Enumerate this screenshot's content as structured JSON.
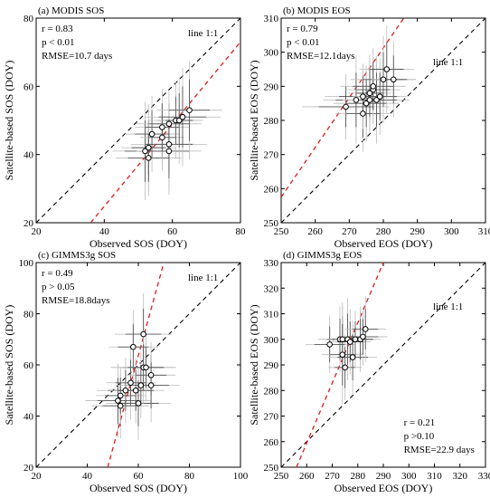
{
  "chart_data": [
    {
      "type": "scatter",
      "title": "(a) MODIS SOS",
      "xlabel": "Observed SOS (DOY)",
      "ylabel": "Satellite-based SOS (DOY)",
      "xlim": [
        20,
        80
      ],
      "ylim": [
        20,
        80
      ],
      "xticks": [
        20,
        40,
        60,
        80
      ],
      "yticks": [
        20,
        40,
        60,
        80
      ],
      "stats": [
        "r = 0.83",
        "p < 0.01",
        "RMSE=10.7 days"
      ],
      "stats_position": "top-left",
      "one_to_one_label": "line 1:1",
      "fit_line": [
        [
          36,
          20
        ],
        [
          80,
          73
        ]
      ],
      "points": [
        {
          "x": 52,
          "y": 41,
          "xerr": 6,
          "yerr": 9
        },
        {
          "x": 53,
          "y": 42,
          "xerr": 5,
          "yerr": 8
        },
        {
          "x": 53,
          "y": 39,
          "xerr": 6,
          "yerr": 7
        },
        {
          "x": 54,
          "y": 46,
          "xerr": 5,
          "yerr": 7
        },
        {
          "x": 57,
          "y": 45,
          "xerr": 4,
          "yerr": 6
        },
        {
          "x": 57,
          "y": 48,
          "xerr": 5,
          "yerr": 7
        },
        {
          "x": 59,
          "y": 49,
          "xerr": 6,
          "yerr": 6
        },
        {
          "x": 59,
          "y": 43,
          "xerr": 7,
          "yerr": 8
        },
        {
          "x": 59,
          "y": 41,
          "xerr": 6,
          "yerr": 8
        },
        {
          "x": 61,
          "y": 50,
          "xerr": 5,
          "yerr": 7
        },
        {
          "x": 62,
          "y": 50,
          "xerr": 4,
          "yerr": 8
        },
        {
          "x": 63,
          "y": 51,
          "xerr": 7,
          "yerr": 9
        },
        {
          "x": 65,
          "y": 53,
          "xerr": 6,
          "yerr": 9
        }
      ]
    },
    {
      "type": "scatter",
      "title": "(b) MODIS EOS",
      "xlabel": "Observed EOS (DOY)",
      "ylabel": "Satellite-based EOS (DOY)",
      "xlim": [
        250,
        310
      ],
      "ylim": [
        250,
        310
      ],
      "xticks": [
        250,
        260,
        270,
        280,
        290,
        300,
        310
      ],
      "yticks": [
        250,
        260,
        270,
        280,
        290,
        300,
        310
      ],
      "stats": [
        "r = 0.79",
        "p < 0.01",
        "RMSE=12.1days"
      ],
      "stats_position": "top-left",
      "one_to_one_label": "line 1:1",
      "fit_line": [
        [
          250,
          257.5
        ],
        [
          286,
          310
        ]
      ],
      "points": [
        {
          "x": 269,
          "y": 284,
          "xerr": 8,
          "yerr": 6
        },
        {
          "x": 272,
          "y": 286,
          "xerr": 6,
          "yerr": 8
        },
        {
          "x": 274,
          "y": 282,
          "xerr": 5,
          "yerr": 7
        },
        {
          "x": 274,
          "y": 287,
          "xerr": 7,
          "yerr": 6
        },
        {
          "x": 275,
          "y": 285,
          "xerr": 6,
          "yerr": 7
        },
        {
          "x": 276,
          "y": 286,
          "xerr": 5,
          "yerr": 6
        },
        {
          "x": 276,
          "y": 288,
          "xerr": 4,
          "yerr": 7
        },
        {
          "x": 277,
          "y": 289,
          "xerr": 5,
          "yerr": 6
        },
        {
          "x": 277,
          "y": 290,
          "xerr": 6,
          "yerr": 7
        },
        {
          "x": 278,
          "y": 286,
          "xerr": 6,
          "yerr": 8
        },
        {
          "x": 279,
          "y": 287,
          "xerr": 5,
          "yerr": 7
        },
        {
          "x": 280,
          "y": 292,
          "xerr": 6,
          "yerr": 8
        },
        {
          "x": 281,
          "y": 295,
          "xerr": 5,
          "yerr": 8
        },
        {
          "x": 283,
          "y": 292,
          "xerr": 4,
          "yerr": 7
        }
      ]
    },
    {
      "type": "scatter",
      "title": "(c) GIMMS3g SOS",
      "xlabel": "Observed SOS (DOY)",
      "ylabel": "Satellite-based SOS (DOY)",
      "xlim": [
        20,
        100
      ],
      "ylim": [
        20,
        100
      ],
      "xticks": [
        20,
        40,
        60,
        80,
        100
      ],
      "yticks": [
        20,
        40,
        60,
        80,
        100
      ],
      "stats": [
        "r = 0.49",
        "p > 0.05",
        "RMSE=18.8days"
      ],
      "stats_position": "top-left",
      "one_to_one_label": "line 1:1",
      "fit_line": [
        [
          48,
          20
        ],
        [
          70,
          100
        ]
      ],
      "points": [
        {
          "x": 52,
          "y": 46,
          "xerr": 8,
          "yerr": 9
        },
        {
          "x": 53,
          "y": 44,
          "xerr": 7,
          "yerr": 8
        },
        {
          "x": 53,
          "y": 48,
          "xerr": 6,
          "yerr": 7
        },
        {
          "x": 55,
          "y": 50,
          "xerr": 7,
          "yerr": 8
        },
        {
          "x": 57,
          "y": 53,
          "xerr": 6,
          "yerr": 9
        },
        {
          "x": 58,
          "y": 67,
          "xerr": 6,
          "yerr": 9
        },
        {
          "x": 59,
          "y": 50,
          "xerr": 7,
          "yerr": 8
        },
        {
          "x": 60,
          "y": 45,
          "xerr": 8,
          "yerr": 9
        },
        {
          "x": 61,
          "y": 52,
          "xerr": 6,
          "yerr": 8
        },
        {
          "x": 62,
          "y": 72,
          "xerr": 7,
          "yerr": 10
        },
        {
          "x": 62,
          "y": 59,
          "xerr": 8,
          "yerr": 9
        },
        {
          "x": 63,
          "y": 59,
          "xerr": 7,
          "yerr": 8
        },
        {
          "x": 65,
          "y": 56,
          "xerr": 6,
          "yerr": 8
        },
        {
          "x": 65,
          "y": 52,
          "xerr": 7,
          "yerr": 9
        }
      ]
    },
    {
      "type": "scatter",
      "title": "(d) GIMMS3g EOS",
      "xlabel": "Observed EOS (DOY)",
      "ylabel": "Satellite-based EOS (DOY)",
      "xlim": [
        250,
        330
      ],
      "ylim": [
        250,
        330
      ],
      "xticks": [
        250,
        260,
        270,
        280,
        290,
        300,
        310,
        320,
        330
      ],
      "yticks": [
        250,
        260,
        270,
        280,
        290,
        300,
        310,
        320,
        330
      ],
      "stats": [
        "r = 0.21",
        "p >0.10",
        "RMSE=22.9 days"
      ],
      "stats_position": "bottom-right",
      "one_to_one_label": "line 1:1",
      "fit_line": [
        [
          256,
          250
        ],
        [
          290,
          330
        ]
      ],
      "points": [
        {
          "x": 269,
          "y": 298,
          "xerr": 6,
          "yerr": 7
        },
        {
          "x": 273,
          "y": 300,
          "xerr": 5,
          "yerr": 8
        },
        {
          "x": 274,
          "y": 300,
          "xerr": 6,
          "yerr": 9
        },
        {
          "x": 274,
          "y": 294,
          "xerr": 5,
          "yerr": 12
        },
        {
          "x": 275,
          "y": 289,
          "xerr": 4,
          "yerr": 8
        },
        {
          "x": 276,
          "y": 300,
          "xerr": 6,
          "yerr": 10
        },
        {
          "x": 277,
          "y": 299,
          "xerr": 5,
          "yerr": 8
        },
        {
          "x": 278,
          "y": 293,
          "xerr": 6,
          "yerr": 9
        },
        {
          "x": 279,
          "y": 300,
          "xerr": 5,
          "yerr": 7
        },
        {
          "x": 281,
          "y": 300,
          "xerr": 5,
          "yerr": 8
        },
        {
          "x": 282,
          "y": 301,
          "xerr": 6,
          "yerr": 7
        },
        {
          "x": 283,
          "y": 304,
          "xerr": 5,
          "yerr": 8
        }
      ]
    }
  ],
  "colors": {
    "one_to_one_line": "#000000",
    "fit_line": "#e01b1b",
    "error_bar": "#555555",
    "error_bar_light": "#bbbbbb",
    "marker_fill": "#ffffff",
    "marker_stroke": "#000000"
  }
}
